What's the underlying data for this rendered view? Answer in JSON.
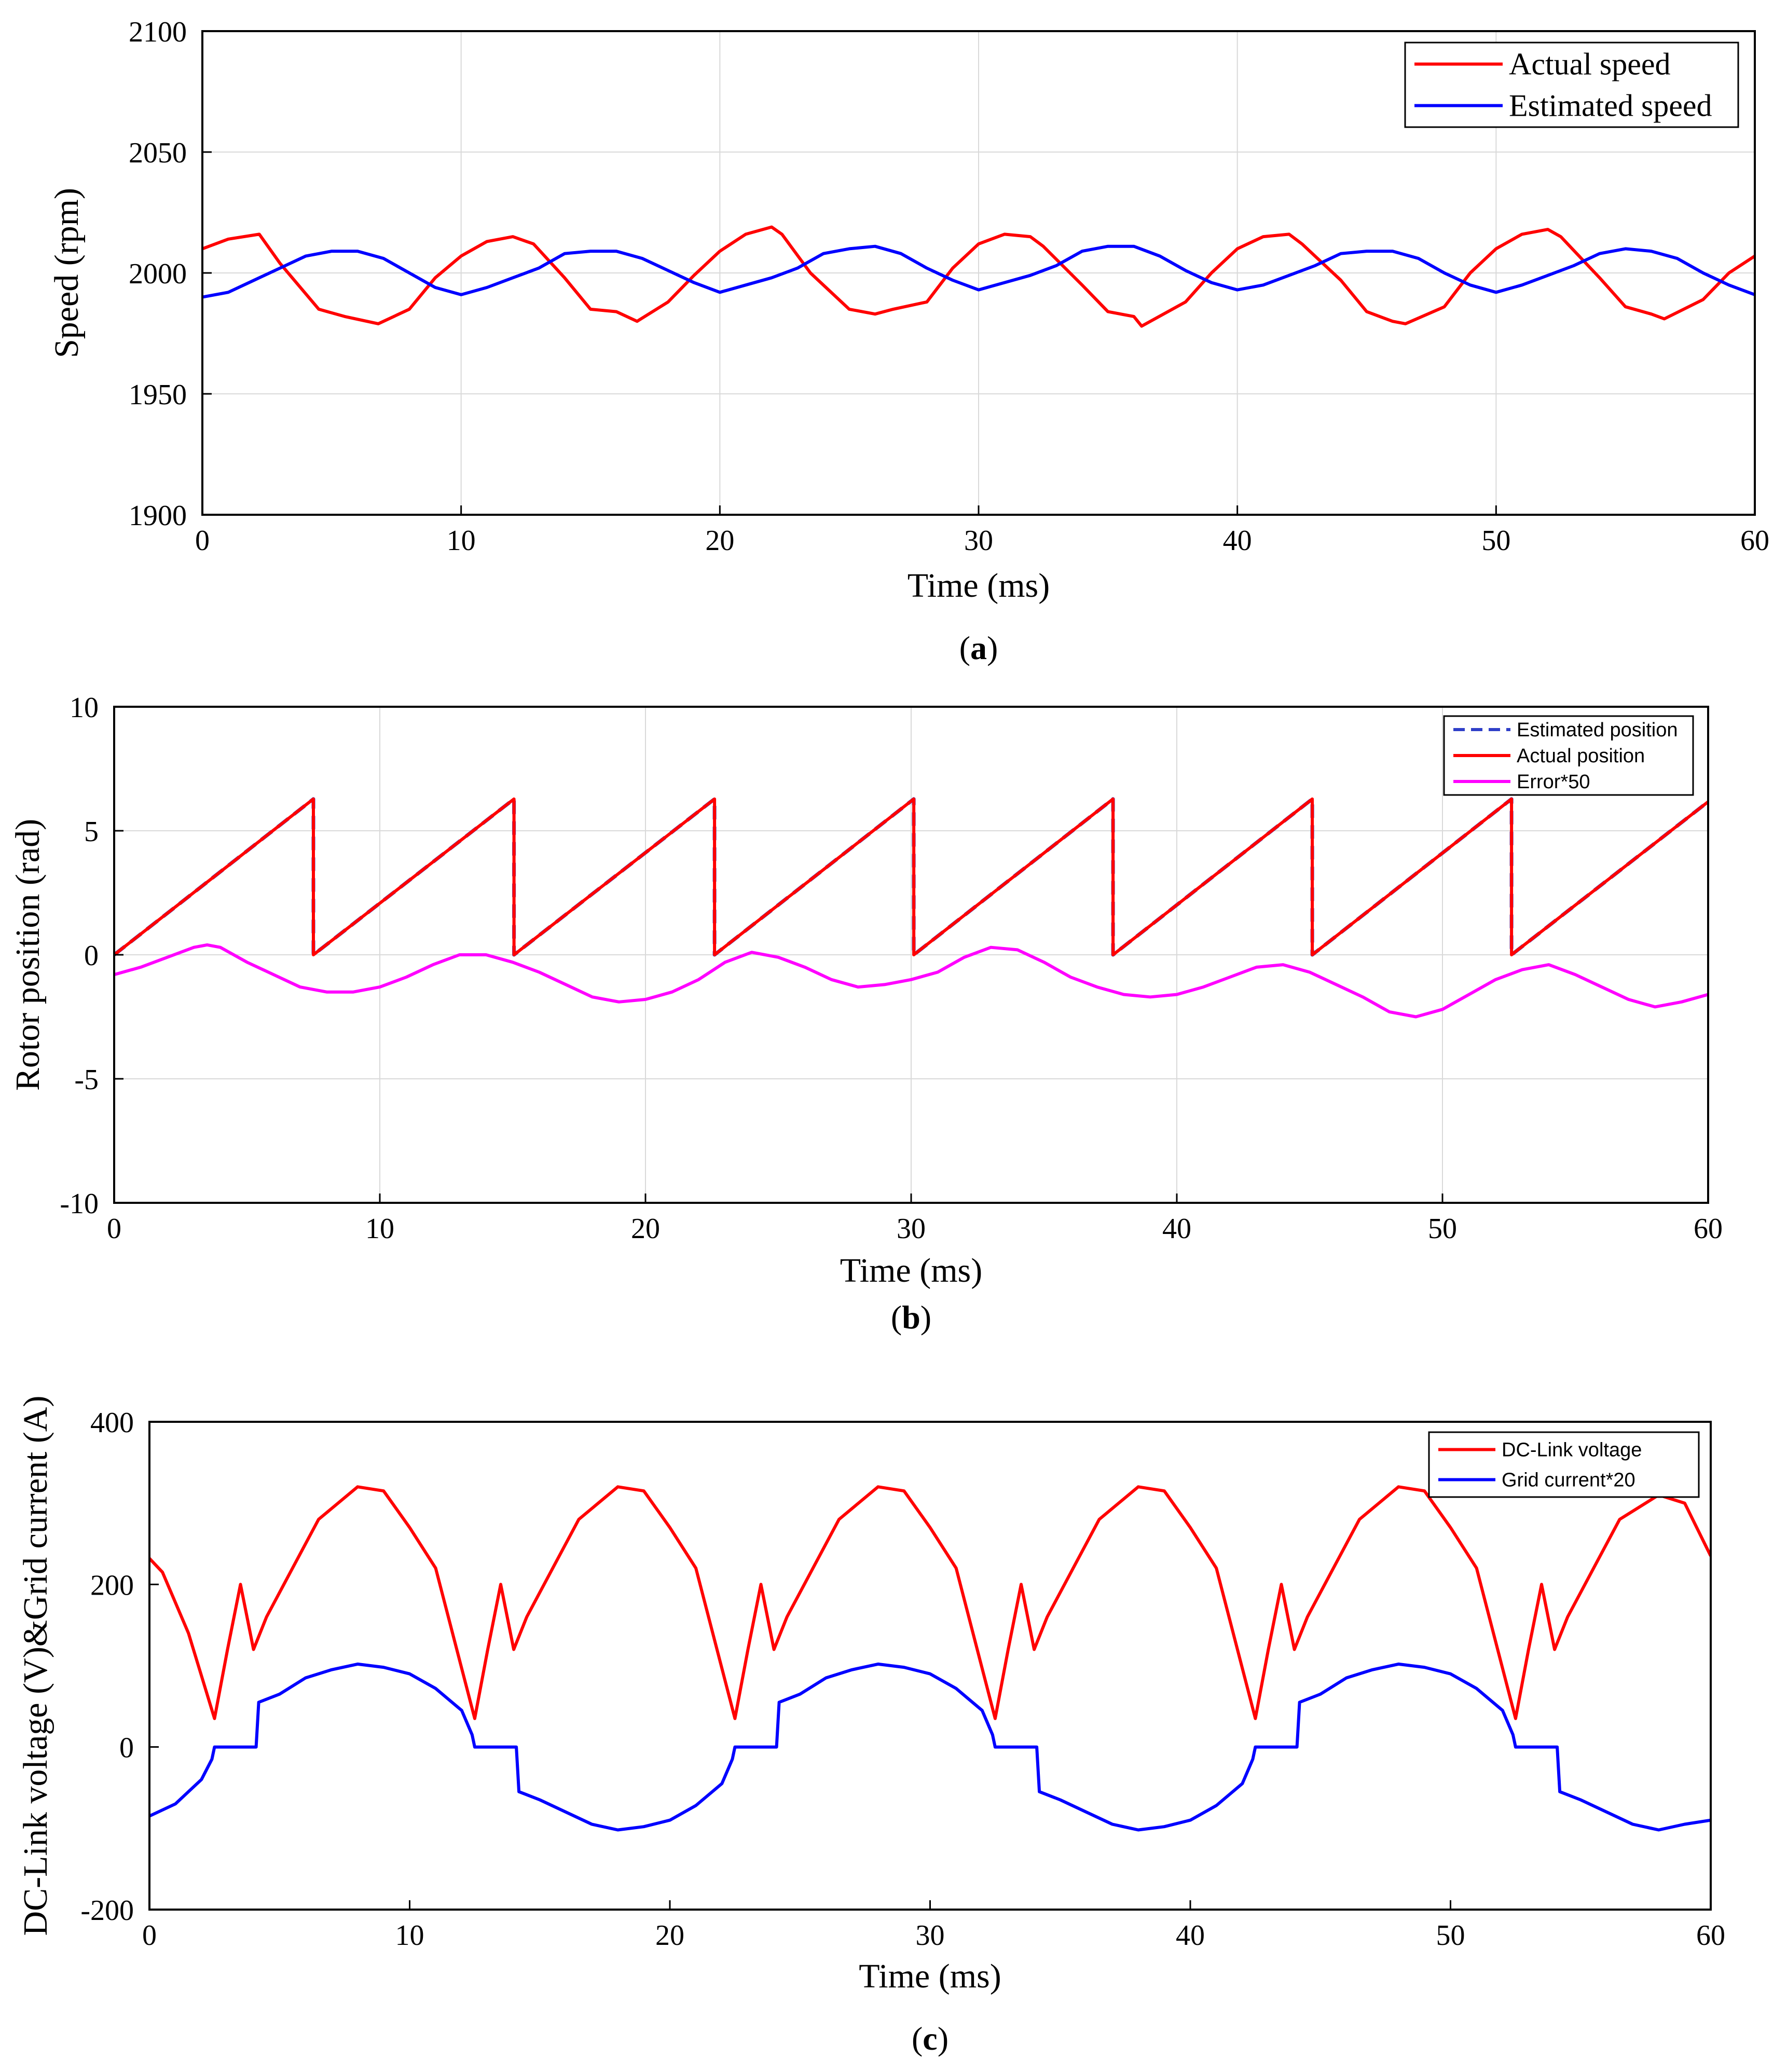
{
  "chart_data": [
    {
      "id": "a",
      "type": "line",
      "caption_label": "a",
      "xlabel": "Time (ms)",
      "ylabel": "Speed (rpm)",
      "xlim": [
        0,
        60
      ],
      "ylim": [
        1900,
        2100
      ],
      "xticks": [
        0,
        10,
        20,
        30,
        40,
        50,
        60
      ],
      "yticks": [
        1900,
        1950,
        2000,
        2050,
        2100
      ],
      "grid": true,
      "legend_position": "top-right",
      "legend_style": "serif",
      "series": [
        {
          "name": "Actual speed",
          "color": "#ff0000",
          "dash": "solid",
          "x": [
            0,
            1,
            2.2,
            3,
            4.5,
            5.5,
            6.8,
            8,
            9,
            10,
            11,
            12,
            12.8,
            14,
            15,
            16,
            16.8,
            18,
            19,
            20,
            21,
            22,
            22.4,
            23.5,
            25,
            26,
            26.7,
            28,
            29,
            30,
            31,
            32,
            32.5,
            34,
            35,
            36,
            36.3,
            38,
            39,
            40,
            41,
            42,
            42.5,
            44,
            45,
            46,
            46.5,
            48,
            49,
            50,
            51,
            52,
            52.5,
            54,
            55,
            56,
            56.5,
            58,
            59,
            60
          ],
          "y": [
            2010,
            2014,
            2016,
            2004,
            1985,
            1982,
            1979,
            1985,
            1998,
            2007,
            2013,
            2015,
            2012,
            1998,
            1985,
            1984,
            1980,
            1988,
            1999,
            2009,
            2016,
            2019,
            2016,
            2000,
            1985,
            1983,
            1985,
            1988,
            2002,
            2012,
            2016,
            2015,
            2011,
            1995,
            1984,
            1982,
            1978,
            1988,
            2000,
            2010,
            2015,
            2016,
            2012,
            1997,
            1984,
            1980,
            1979,
            1986,
            2000,
            2010,
            2016,
            2018,
            2015,
            1998,
            1986,
            1983,
            1981,
            1989,
            2000,
            2007
          ]
        },
        {
          "name": "Estimated speed",
          "color": "#0000ff",
          "dash": "solid",
          "x": [
            0,
            1,
            2,
            3,
            4,
            5,
            6,
            7,
            8,
            9,
            10,
            11,
            12,
            13,
            14,
            15,
            16,
            17,
            18,
            19,
            20,
            21,
            22,
            23,
            24,
            25,
            26,
            27,
            28,
            29,
            30,
            31,
            32,
            33,
            34,
            35,
            36,
            37,
            38,
            39,
            40,
            41,
            42,
            43,
            44,
            45,
            46,
            47,
            48,
            49,
            50,
            51,
            52,
            53,
            54,
            55,
            56,
            57,
            58,
            59,
            60
          ],
          "y": [
            1990,
            1992,
            1997,
            2002,
            2007,
            2009,
            2009,
            2006,
            2000,
            1994,
            1991,
            1994,
            1998,
            2002,
            2008,
            2009,
            2009,
            2006,
            2001,
            1996,
            1992,
            1995,
            1998,
            2002,
            2008,
            2010,
            2011,
            2008,
            2002,
            1997,
            1993,
            1996,
            1999,
            2003,
            2009,
            2011,
            2011,
            2007,
            2001,
            1996,
            1993,
            1995,
            1999,
            2003,
            2008,
            2009,
            2009,
            2006,
            2000,
            1995,
            1992,
            1995,
            1999,
            2003,
            2008,
            2010,
            2009,
            2006,
            2000,
            1995,
            1991
          ]
        }
      ]
    },
    {
      "id": "b",
      "type": "line",
      "caption_label": "b",
      "xlabel": "Time (ms)",
      "ylabel": "Rotor position (rad)",
      "xlim": [
        0,
        60
      ],
      "ylim": [
        -10,
        10
      ],
      "xticks": [
        0,
        10,
        20,
        30,
        40,
        50,
        60
      ],
      "yticks": [
        -10,
        -5,
        0,
        5,
        10
      ],
      "grid": true,
      "legend_position": "top-right",
      "legend_style": "sans",
      "series": [
        {
          "name": "Estimated position",
          "color": "#2f3fc8",
          "dash": "dashed",
          "x": [
            0,
            7.5,
            7.5,
            15.05,
            15.05,
            22.6,
            22.6,
            30.1,
            30.1,
            37.6,
            37.6,
            45.1,
            45.1,
            52.6,
            52.6,
            60
          ],
          "y": [
            0,
            6.28,
            0,
            6.28,
            0,
            6.28,
            0,
            6.28,
            0,
            6.28,
            0,
            6.28,
            0,
            6.28,
            0,
            6.17
          ]
        },
        {
          "name": "Actual position",
          "color": "#ff0000",
          "dash": "solid",
          "x": [
            0,
            7.5,
            7.5,
            15.05,
            15.05,
            22.6,
            22.6,
            30.1,
            30.1,
            37.6,
            37.6,
            45.1,
            45.1,
            52.6,
            52.6,
            60
          ],
          "y": [
            0,
            6.28,
            0,
            6.28,
            0,
            6.28,
            0,
            6.28,
            0,
            6.28,
            0,
            6.28,
            0,
            6.28,
            0,
            6.17
          ]
        },
        {
          "name": "Error*50",
          "color": "#ff00ff",
          "dash": "solid",
          "x": [
            0,
            1,
            2,
            3,
            3.5,
            4,
            5,
            6,
            7,
            8,
            9,
            10,
            11,
            12,
            13,
            14,
            15,
            16,
            17,
            18,
            19,
            20,
            21,
            22,
            23,
            24,
            25,
            26,
            27,
            28,
            29,
            30,
            31,
            32,
            33,
            34,
            35,
            36,
            37,
            38,
            39,
            40,
            41,
            42,
            43,
            44,
            45,
            46,
            47,
            48,
            49,
            50,
            51,
            52,
            53,
            54,
            55,
            56,
            57,
            58,
            59,
            60
          ],
          "y": [
            -0.8,
            -0.5,
            -0.1,
            0.3,
            0.4,
            0.3,
            -0.3,
            -0.8,
            -1.3,
            -1.5,
            -1.5,
            -1.3,
            -0.9,
            -0.4,
            0,
            0,
            -0.3,
            -0.7,
            -1.2,
            -1.7,
            -1.9,
            -1.8,
            -1.5,
            -1,
            -0.3,
            0.1,
            -0.1,
            -0.5,
            -1.0,
            -1.3,
            -1.2,
            -1.0,
            -0.7,
            -0.1,
            0.3,
            0.2,
            -0.3,
            -0.9,
            -1.3,
            -1.6,
            -1.7,
            -1.6,
            -1.3,
            -0.9,
            -0.5,
            -0.4,
            -0.7,
            -1.2,
            -1.7,
            -2.3,
            -2.5,
            -2.2,
            -1.6,
            -1.0,
            -0.6,
            -0.4,
            -0.8,
            -1.3,
            -1.8,
            -2.1,
            -1.9,
            -1.6
          ]
        }
      ]
    },
    {
      "id": "c",
      "type": "line",
      "caption_label": "c",
      "xlabel": "Time (ms)",
      "ylabel": "DC-Link voltage (V)&Grid current (A)",
      "xlim": [
        0,
        60
      ],
      "ylim": [
        -200,
        400
      ],
      "xticks": [
        0,
        10,
        20,
        30,
        40,
        50,
        60
      ],
      "yticks": [
        -200,
        0,
        200,
        400
      ],
      "grid": false,
      "legend_position": "top-right",
      "legend_style": "sans",
      "series": [
        {
          "name": "DC-Link voltage",
          "color": "#ff0000",
          "dash": "solid",
          "x": [
            0,
            0.5,
            1.5,
            2.5,
            3,
            3.5,
            4,
            4.5,
            5.5,
            6.5,
            8,
            9,
            10,
            11,
            12.5,
            13,
            13.5,
            14,
            14.5,
            15.5,
            16.5,
            18,
            19,
            20,
            21,
            22.5,
            23,
            23.5,
            24,
            24.5,
            25.5,
            26.5,
            28,
            29,
            30,
            31,
            32.5,
            33,
            33.5,
            34,
            34.5,
            35.5,
            36.5,
            38,
            39,
            40,
            41,
            42.5,
            43,
            43.5,
            44,
            44.5,
            45.5,
            46.5,
            48,
            49,
            50,
            51,
            52.5,
            53,
            53.5,
            54,
            54.5,
            55.5,
            56.5,
            58,
            59,
            60
          ],
          "y": [
            232,
            215,
            140,
            35,
            120,
            200,
            120,
            160,
            220,
            280,
            320,
            315,
            270,
            220,
            35,
            120,
            200,
            120,
            160,
            220,
            280,
            320,
            315,
            270,
            220,
            35,
            120,
            200,
            120,
            160,
            220,
            280,
            320,
            315,
            270,
            220,
            35,
            120,
            200,
            120,
            160,
            220,
            280,
            320,
            315,
            270,
            220,
            35,
            120,
            200,
            120,
            160,
            220,
            280,
            320,
            315,
            270,
            220,
            35,
            120,
            200,
            120,
            160,
            220,
            280,
            310,
            300,
            235
          ]
        },
        {
          "name": "Grid current*20",
          "color": "#0000ff",
          "dash": "solid",
          "x": [
            0,
            1,
            2,
            2.4,
            2.5,
            4.1,
            4.2,
            5,
            6,
            7,
            8,
            9,
            10,
            11,
            12,
            12.4,
            12.5,
            14.1,
            14.2,
            15,
            16,
            17,
            18,
            19,
            20,
            21,
            22,
            22.4,
            22.5,
            24.1,
            24.2,
            25,
            26,
            27,
            28,
            29,
            30,
            31,
            32,
            32.4,
            32.5,
            34.1,
            34.2,
            35,
            36,
            37,
            38,
            39,
            40,
            41,
            42,
            42.4,
            42.5,
            44.1,
            44.2,
            45,
            46,
            47,
            48,
            49,
            50,
            51,
            52,
            52.4,
            52.5,
            54.1,
            54.2,
            55,
            56,
            57,
            58,
            59,
            60
          ],
          "y": [
            -85,
            -70,
            -40,
            -15,
            0,
            0,
            55,
            65,
            85,
            95,
            102,
            98,
            90,
            72,
            45,
            15,
            0,
            0,
            -55,
            -65,
            -80,
            -95,
            -102,
            -98,
            -90,
            -72,
            -45,
            -15,
            0,
            0,
            55,
            65,
            85,
            95,
            102,
            98,
            90,
            72,
            45,
            15,
            0,
            0,
            -55,
            -65,
            -80,
            -95,
            -102,
            -98,
            -90,
            -72,
            -45,
            -15,
            0,
            0,
            55,
            65,
            85,
            95,
            102,
            98,
            90,
            72,
            45,
            15,
            0,
            0,
            -55,
            -65,
            -80,
            -95,
            -102,
            -95,
            -90
          ]
        }
      ]
    }
  ]
}
